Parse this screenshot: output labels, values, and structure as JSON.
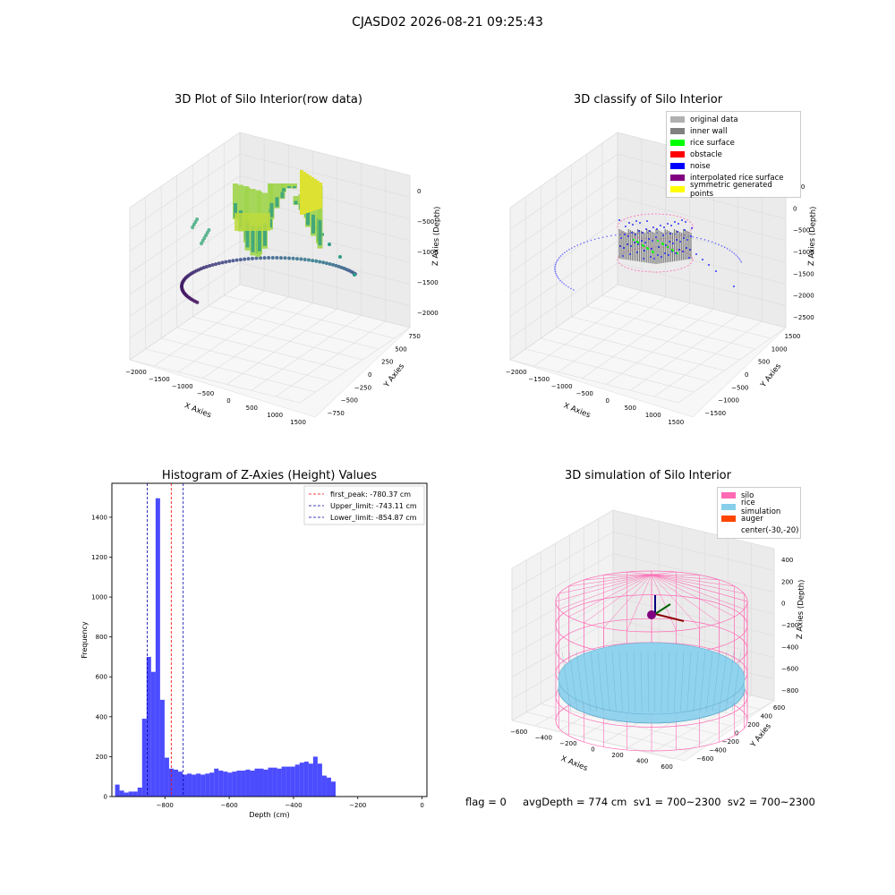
{
  "suptitle": "CJASD02 2026-08-21 09:25:43",
  "footer": "flag = 0     avgDepth = 774 cm  sv1 = 700~2300  sv2 = 700~2300",
  "panels": {
    "p1": {
      "title": "3D Plot of Silo Interior(row data)",
      "xlabel": "X Axies",
      "ylabel": "Y Axies",
      "zlabel": "Z Axies (Depth)",
      "xticks": [
        "−2000",
        "−1500",
        "−1000",
        "−500",
        "0",
        "500",
        "1000",
        "1500"
      ],
      "yticks": [
        "−750",
        "−500",
        "−250",
        "0",
        "250",
        "500",
        "750"
      ],
      "zticks": [
        "0",
        "−500",
        "−1000",
        "−1500",
        "−2000"
      ],
      "colormap": [
        "#440154",
        "#3b528b",
        "#21918c",
        "#5ec962",
        "#fde725"
      ]
    },
    "p2": {
      "title": "3D classify of Silo Interior",
      "xlabel": "X Axies",
      "ylabel": "Y Axies",
      "zlabel": "Z Axies (Depth)",
      "xticks": [
        "−2000",
        "−1500",
        "−1000",
        "−500",
        "0",
        "500",
        "1000",
        "1500"
      ],
      "yticks": [
        "−1500",
        "−1000",
        "−500",
        "0",
        "500",
        "1000",
        "1500"
      ],
      "zticks": [
        "500",
        "0",
        "−500",
        "−1000",
        "−1500",
        "−2000",
        "−2500"
      ],
      "legend": [
        {
          "label": "original data",
          "color": "#b0b0b0"
        },
        {
          "label": "inner wall",
          "color": "#808080"
        },
        {
          "label": "rice surface",
          "color": "#00ff00"
        },
        {
          "label": "obstacle",
          "color": "#ff0000"
        },
        {
          "label": "noise",
          "color": "#0000ff"
        },
        {
          "label": "interpolated rice surface",
          "color": "#800080"
        },
        {
          "label": "symmetric generated points",
          "color": "#ffff00"
        }
      ]
    },
    "p4": {
      "title": "3D simulation of Silo Interior",
      "xlabel": "X Axies",
      "ylabel": "Y Axies",
      "zlabel": "Z Axies (Depth)",
      "xticks": [
        "−600",
        "−400",
        "−200",
        "0",
        "200",
        "400",
        "600"
      ],
      "yticks": [
        "−600",
        "−400",
        "−200",
        "0",
        "200",
        "400",
        "600"
      ],
      "zticks": [
        "400",
        "200",
        "0",
        "−200",
        "−400",
        "−600",
        "−800"
      ],
      "legend": [
        {
          "label": "silo",
          "color": "#ff69b4"
        },
        {
          "label": "rice simulation",
          "color": "#87ceeb"
        },
        {
          "label": "auger",
          "color": "#ff4500"
        },
        {
          "label": "center(-30,-20)",
          "color": ""
        }
      ]
    }
  },
  "chart_data": {
    "type": "bar",
    "title": "Histogram of Z-Axies (Height) Values",
    "xlabel": "Depth (cm)",
    "ylabel": "Frequency",
    "xlim": [
      -965,
      15
    ],
    "ylim": [
      0,
      1570
    ],
    "xticks": [
      -800,
      -600,
      -400,
      -200,
      0
    ],
    "yticks": [
      0,
      200,
      400,
      600,
      800,
      1000,
      1200,
      1400
    ],
    "bar_color": "#0000ff",
    "bin_start": -955,
    "bin_width": 14,
    "values": [
      60,
      30,
      20,
      25,
      25,
      45,
      390,
      700,
      625,
      1495,
      485,
      195,
      140,
      135,
      125,
      110,
      115,
      110,
      115,
      110,
      115,
      120,
      140,
      130,
      125,
      120,
      125,
      130,
      130,
      135,
      130,
      140,
      140,
      135,
      145,
      145,
      140,
      150,
      150,
      150,
      160,
      170,
      175,
      165,
      200,
      165,
      105,
      95,
      75
    ],
    "lines": [
      {
        "label": "first_peak: -780.37 cm",
        "x": -780.37,
        "color": "#ff0000"
      },
      {
        "label": "Upper_limit: -743.11 cm",
        "x": -743.11,
        "color": "#0000aa"
      },
      {
        "label": "Lower_limit: -854.87 cm",
        "x": -854.87,
        "color": "#0000aa"
      }
    ]
  }
}
